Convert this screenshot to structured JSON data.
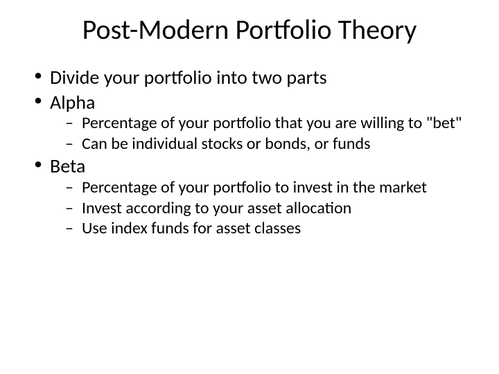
{
  "title": "Post-Modern Portfolio Theory",
  "bullets": {
    "b0": "Divide your portfolio into two parts",
    "b1": "Alpha",
    "b1_sub0": "Percentage of your portfolio that you are willing to \"bet\"",
    "b1_sub1": "Can be individual stocks or bonds, or funds",
    "b2": "Beta",
    "b2_sub0": "Percentage of your portfolio to invest in the market",
    "b2_sub1": "Invest according to your asset allocation",
    "b2_sub2": "Use index funds for asset classes"
  },
  "style": {
    "background_color": "#ffffff",
    "text_color": "#000000",
    "title_fontsize": 40,
    "level1_fontsize": 28,
    "level2_fontsize": 24,
    "font_family": "Calibri"
  }
}
